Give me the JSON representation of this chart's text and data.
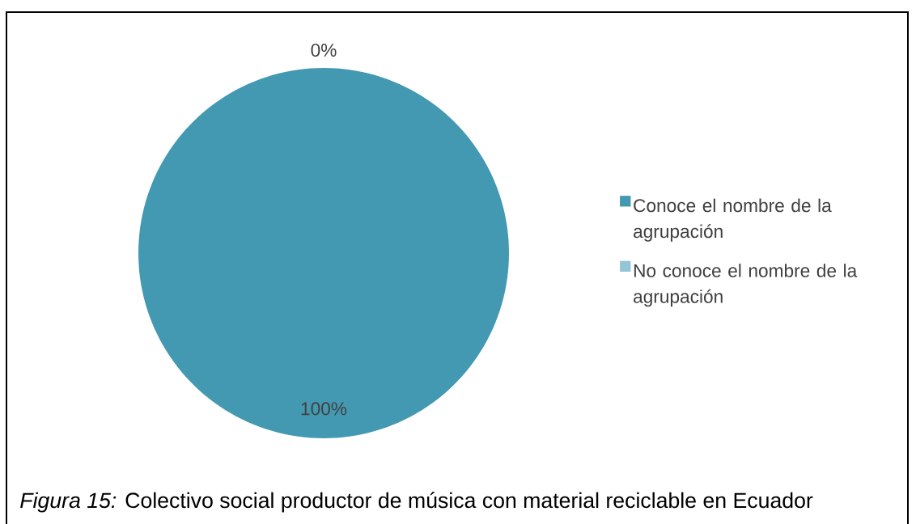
{
  "chart_data": {
    "type": "pie",
    "categories": [
      "Conoce el nombre de la agrupación",
      "No conoce el nombre de la agrupación"
    ],
    "values": [
      100,
      0
    ],
    "colors": [
      "#4399b1",
      "#93c5d6"
    ],
    "value_labels": [
      "100%",
      "0%"
    ],
    "legend": "right",
    "annotations": [
      "*Figura 15:* Colectivo social productor de música con material reciclable en Ecuador"
    ]
  }
}
